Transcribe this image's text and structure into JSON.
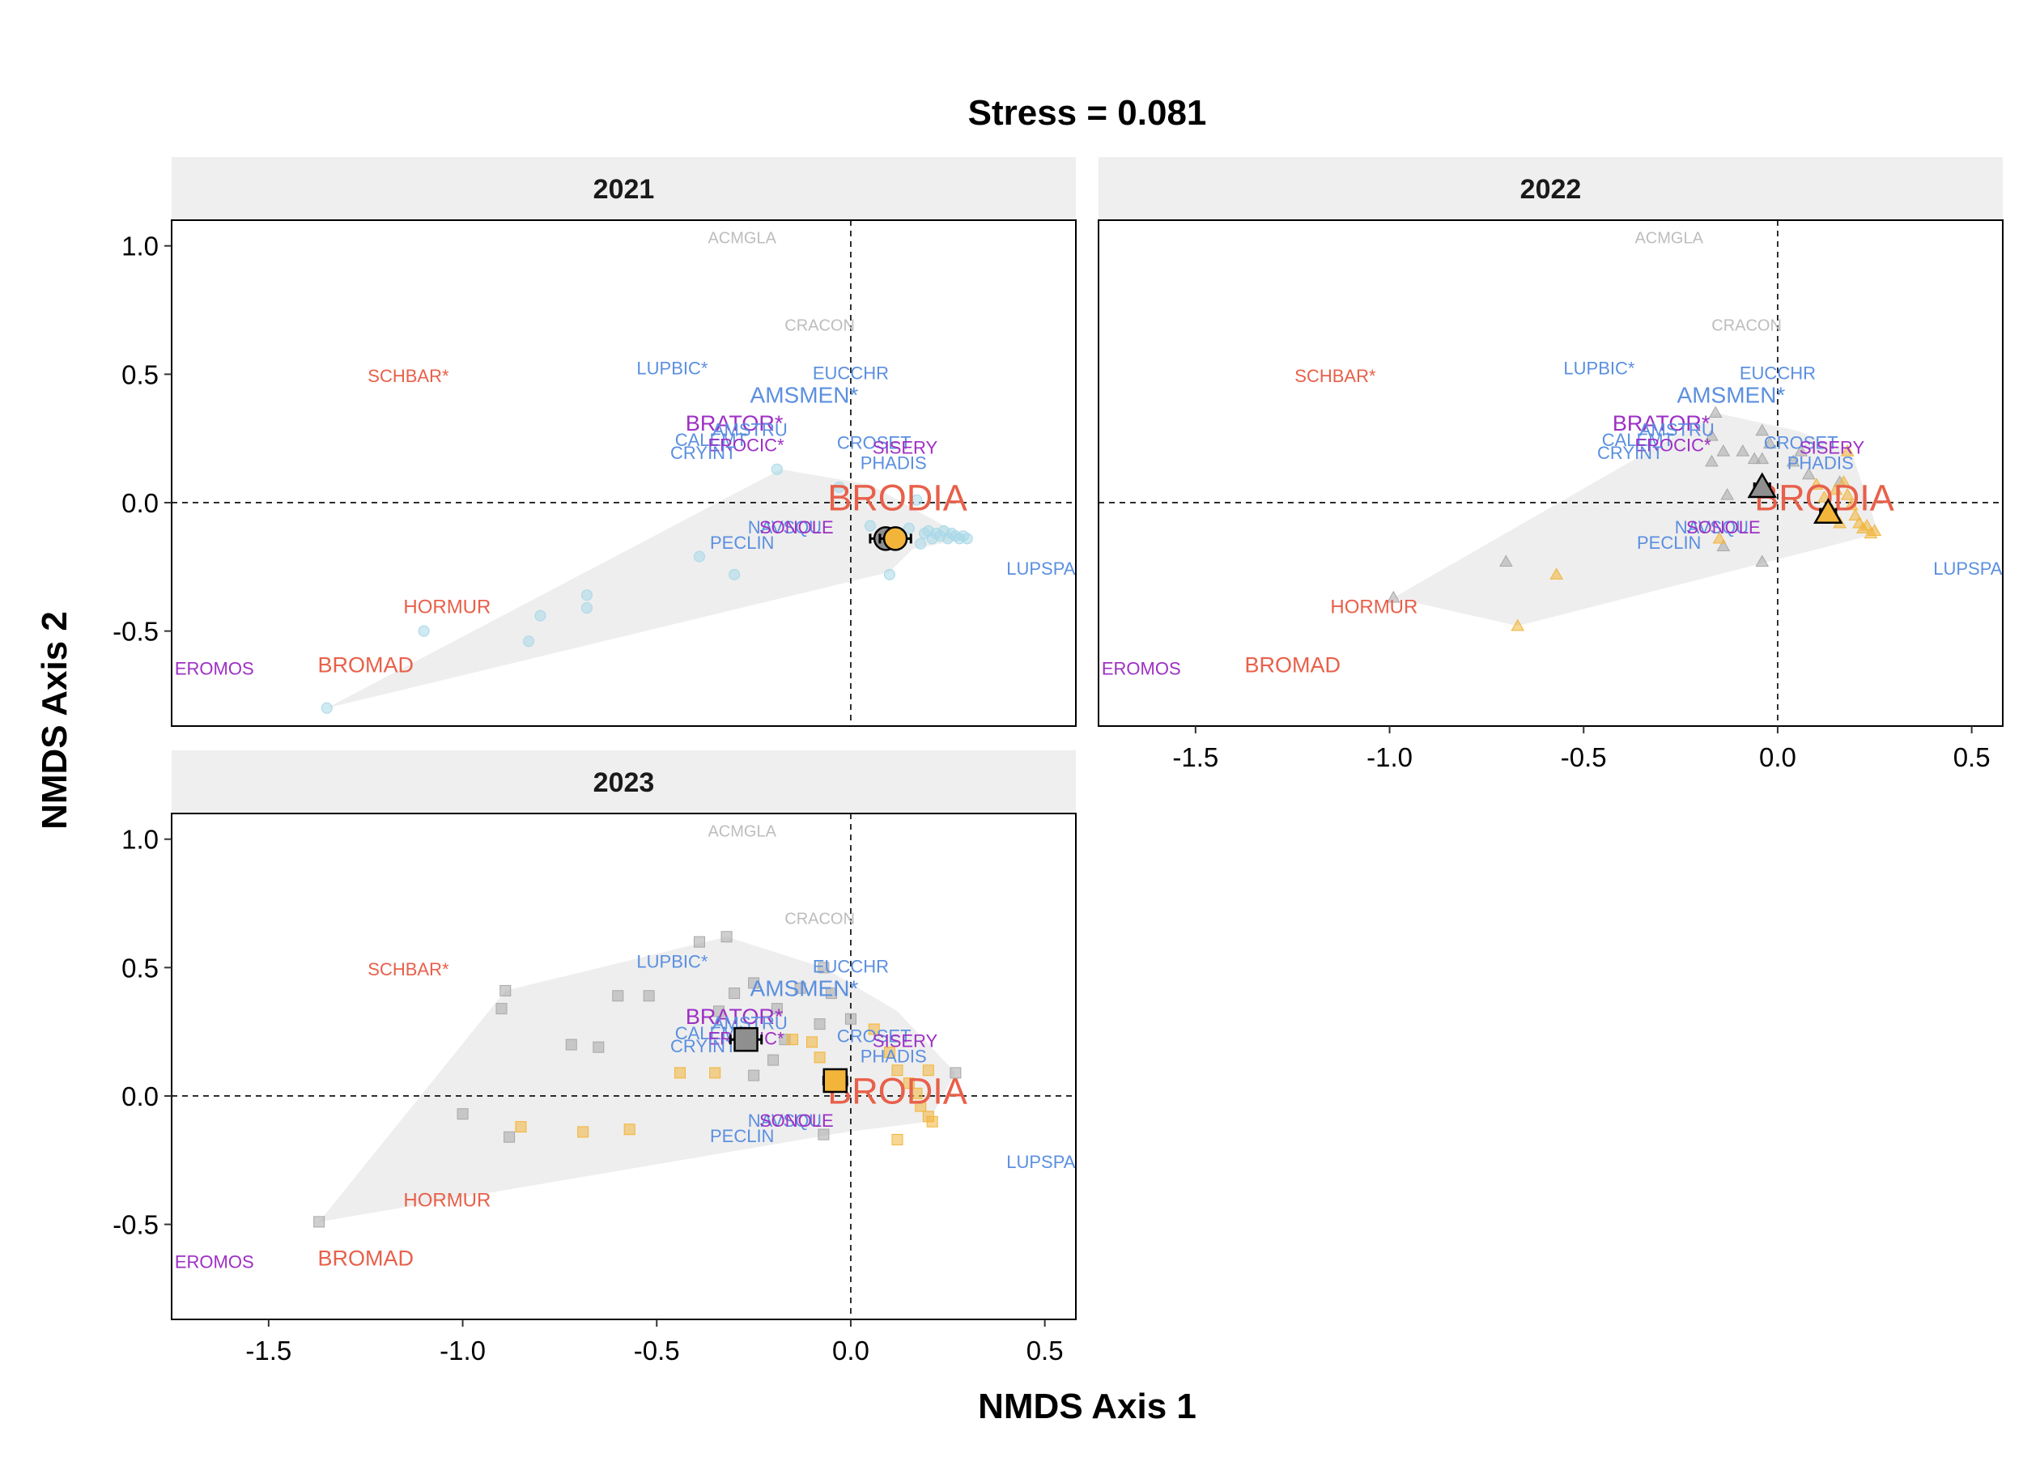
{
  "chart_data": {
    "type": "scatter",
    "title": "Stress = 0.081",
    "xlabel": "NMDS Axis 1",
    "ylabel": "NMDS Axis 2",
    "xlim": [
      -1.75,
      0.58
    ],
    "ylim": [
      -0.87,
      1.1
    ],
    "xticks": [
      -1.5,
      -1.0,
      -0.5,
      0.0,
      0.5
    ],
    "xtick_labels": [
      "-1.5",
      "-1.0",
      "-0.5",
      "0.0",
      "0.5"
    ],
    "yticks": [
      -0.5,
      0.0,
      0.5,
      1.0
    ],
    "ytick_labels": [
      "-0.5",
      "0.0",
      "0.5",
      "1.0"
    ],
    "grid": false,
    "reference_lines": {
      "x": 0,
      "y": 0,
      "style": "dashed"
    },
    "colors": {
      "orange": "#f2b53a",
      "gray": "#a8a8a8",
      "lightblue": "#a8d8e8",
      "hull": "#ebebeb",
      "red": "#e8604a",
      "blue": "#5b8fe0",
      "purple": "#9d2fc4",
      "lightgray": "#bdbdbd"
    },
    "species": [
      {
        "label": "ACMGLA",
        "x": -0.28,
        "y": 1.01,
        "color": "#bdbdbd",
        "size": 20
      },
      {
        "label": "CRACON",
        "x": -0.08,
        "y": 0.67,
        "color": "#bdbdbd",
        "size": 20
      },
      {
        "label": "SCHBAR*",
        "x": -1.14,
        "y": 0.47,
        "color": "#e8604a",
        "size": 22
      },
      {
        "label": "LUPBIC*",
        "x": -0.46,
        "y": 0.5,
        "color": "#5b8fe0",
        "size": 22
      },
      {
        "label": "EUCCHR",
        "x": 0.0,
        "y": 0.48,
        "color": "#5b8fe0",
        "size": 22
      },
      {
        "label": "AMSMEN*",
        "x": -0.12,
        "y": 0.39,
        "color": "#5b8fe0",
        "size": 28
      },
      {
        "label": "BRATOR*",
        "x": -0.3,
        "y": 0.28,
        "color": "#9d2fc4",
        "size": 27
      },
      {
        "label": "AMSTRU",
        "x": -0.26,
        "y": 0.26,
        "color": "#5b8fe0",
        "size": 22
      },
      {
        "label": "CALEMT",
        "x": -0.36,
        "y": 0.22,
        "color": "#5b8fe0",
        "size": 22
      },
      {
        "label": "EROCIC*",
        "x": -0.27,
        "y": 0.2,
        "color": "#9d2fc4",
        "size": 22
      },
      {
        "label": "CRYINT",
        "x": -0.38,
        "y": 0.17,
        "color": "#5b8fe0",
        "size": 22
      },
      {
        "label": "CROSET",
        "x": 0.06,
        "y": 0.21,
        "color": "#5b8fe0",
        "size": 22
      },
      {
        "label": "SISERY",
        "x": 0.14,
        "y": 0.19,
        "color": "#9d2fc4",
        "size": 22
      },
      {
        "label": "PHADIS",
        "x": 0.11,
        "y": 0.13,
        "color": "#5b8fe0",
        "size": 22
      },
      {
        "label": "BRODIA",
        "x": 0.12,
        "y": -0.03,
        "color": "#e8604a",
        "size": 45
      },
      {
        "label": "NAVSQU",
        "x": -0.17,
        "y": -0.12,
        "color": "#5b8fe0",
        "size": 22
      },
      {
        "label": "SONOLE",
        "x": -0.14,
        "y": -0.12,
        "color": "#9d2fc4",
        "size": 22
      },
      {
        "label": "PECLIN",
        "x": -0.28,
        "y": -0.18,
        "color": "#5b8fe0",
        "size": 22
      },
      {
        "label": "LUPSPA",
        "x": 0.49,
        "y": -0.28,
        "color": "#5b8fe0",
        "size": 22
      },
      {
        "label": "HORMUR",
        "x": -1.04,
        "y": -0.43,
        "color": "#e8604a",
        "size": 24
      },
      {
        "label": "BROMAD",
        "x": -1.25,
        "y": -0.66,
        "color": "#e8604a",
        "size": 27
      },
      {
        "label": "EROMOS",
        "x": -1.64,
        "y": -0.67,
        "color": "#9d2fc4",
        "size": 22
      }
    ],
    "panels": [
      {
        "title": "2021",
        "marker": "circle",
        "hull": [
          [
            -1.35,
            -0.8
          ],
          [
            -0.18,
            0.13
          ],
          [
            0.05,
            0.07
          ],
          [
            0.3,
            -0.14
          ],
          [
            0.16,
            -0.18
          ],
          [
            0.1,
            -0.27
          ]
        ],
        "points": [
          {
            "x": -1.35,
            "y": -0.8,
            "c": "lightblue"
          },
          {
            "x": -1.1,
            "y": -0.5,
            "c": "lightblue"
          },
          {
            "x": -0.83,
            "y": -0.54,
            "c": "lightblue"
          },
          {
            "x": -0.8,
            "y": -0.44,
            "c": "lightblue"
          },
          {
            "x": -0.68,
            "y": -0.41,
            "c": "lightblue"
          },
          {
            "x": -0.68,
            "y": -0.36,
            "c": "lightblue"
          },
          {
            "x": -0.39,
            "y": -0.21,
            "c": "lightblue"
          },
          {
            "x": -0.3,
            "y": -0.28,
            "c": "lightblue"
          },
          {
            "x": -0.19,
            "y": 0.13,
            "c": "lightblue"
          },
          {
            "x": -0.03,
            "y": 0.06,
            "c": "lightblue"
          },
          {
            "x": 0.1,
            "y": -0.28,
            "c": "lightblue"
          },
          {
            "x": 0.13,
            "y": -0.14,
            "c": "lightblue"
          },
          {
            "x": 0.15,
            "y": -0.1,
            "c": "lightblue"
          },
          {
            "x": 0.18,
            "y": -0.16,
            "c": "lightblue"
          },
          {
            "x": 0.19,
            "y": -0.12,
            "c": "lightblue"
          },
          {
            "x": 0.2,
            "y": -0.11,
            "c": "lightblue"
          },
          {
            "x": 0.21,
            "y": -0.14,
            "c": "lightblue"
          },
          {
            "x": 0.22,
            "y": -0.12,
            "c": "lightblue"
          },
          {
            "x": 0.23,
            "y": -0.13,
            "c": "lightblue"
          },
          {
            "x": 0.24,
            "y": -0.11,
            "c": "lightblue"
          },
          {
            "x": 0.25,
            "y": -0.14,
            "c": "lightblue"
          },
          {
            "x": 0.26,
            "y": -0.12,
            "c": "lightblue"
          },
          {
            "x": 0.27,
            "y": -0.13,
            "c": "lightblue"
          },
          {
            "x": 0.28,
            "y": -0.14,
            "c": "lightblue"
          },
          {
            "x": 0.29,
            "y": -0.13,
            "c": "lightblue"
          },
          {
            "x": 0.3,
            "y": -0.14,
            "c": "lightblue"
          },
          {
            "x": 0.17,
            "y": 0.01,
            "c": "lightblue"
          },
          {
            "x": 0.05,
            "y": -0.09,
            "c": "lightblue"
          }
        ],
        "centroids": [
          {
            "x": 0.09,
            "y": -0.14,
            "c": "gray",
            "err": 0.04
          },
          {
            "x": 0.115,
            "y": -0.14,
            "c": "orange",
            "err": 0.04
          }
        ]
      },
      {
        "title": "2022",
        "marker": "triangle",
        "hull": [
          [
            -0.99,
            -0.37
          ],
          [
            -0.16,
            0.35
          ],
          [
            0.05,
            0.28
          ],
          [
            0.19,
            0.2
          ],
          [
            0.26,
            -0.12
          ],
          [
            -0.67,
            -0.48
          ]
        ],
        "points": [
          {
            "x": -0.99,
            "y": -0.37,
            "c": "gray"
          },
          {
            "x": -0.7,
            "y": -0.23,
            "c": "gray"
          },
          {
            "x": -0.16,
            "y": 0.35,
            "c": "gray"
          },
          {
            "x": -0.17,
            "y": 0.26,
            "c": "gray"
          },
          {
            "x": -0.14,
            "y": 0.2,
            "c": "gray"
          },
          {
            "x": -0.17,
            "y": 0.16,
            "c": "gray"
          },
          {
            "x": -0.09,
            "y": 0.2,
            "c": "gray"
          },
          {
            "x": -0.06,
            "y": 0.17,
            "c": "gray"
          },
          {
            "x": -0.04,
            "y": 0.17,
            "c": "gray"
          },
          {
            "x": -0.04,
            "y": 0.28,
            "c": "gray"
          },
          {
            "x": -0.02,
            "y": 0.23,
            "c": "gray"
          },
          {
            "x": 0.04,
            "y": 0.16,
            "c": "gray"
          },
          {
            "x": 0.06,
            "y": 0.2,
            "c": "gray"
          },
          {
            "x": 0.08,
            "y": 0.11,
            "c": "gray"
          },
          {
            "x": -0.13,
            "y": 0.03,
            "c": "gray"
          },
          {
            "x": -0.04,
            "y": -0.23,
            "c": "gray"
          },
          {
            "x": -0.14,
            "y": -0.17,
            "c": "gray"
          },
          {
            "x": 0.16,
            "y": 0.08,
            "c": "gray"
          },
          {
            "x": -0.67,
            "y": -0.48,
            "c": "orange"
          },
          {
            "x": -0.57,
            "y": -0.28,
            "c": "orange"
          },
          {
            "x": -0.15,
            "y": -0.14,
            "c": "orange"
          },
          {
            "x": 0.1,
            "y": 0.07,
            "c": "orange"
          },
          {
            "x": 0.12,
            "y": 0.02,
            "c": "orange"
          },
          {
            "x": 0.14,
            "y": -0.03,
            "c": "orange"
          },
          {
            "x": 0.15,
            "y": 0.05,
            "c": "orange"
          },
          {
            "x": 0.17,
            "y": 0.08,
            "c": "orange"
          },
          {
            "x": 0.18,
            "y": 0.03,
            "c": "orange"
          },
          {
            "x": 0.19,
            "y": -0.01,
            "c": "orange"
          },
          {
            "x": 0.2,
            "y": -0.05,
            "c": "orange"
          },
          {
            "x": 0.21,
            "y": -0.08,
            "c": "orange"
          },
          {
            "x": 0.22,
            "y": -0.1,
            "c": "orange"
          },
          {
            "x": 0.23,
            "y": -0.09,
            "c": "orange"
          },
          {
            "x": 0.24,
            "y": -0.12,
            "c": "orange"
          },
          {
            "x": 0.25,
            "y": -0.11,
            "c": "orange"
          },
          {
            "x": 0.18,
            "y": 0.2,
            "c": "orange"
          },
          {
            "x": 0.16,
            "y": -0.08,
            "c": "orange"
          }
        ],
        "centroids": [
          {
            "x": -0.04,
            "y": 0.06,
            "c": "gray",
            "err": 0.02
          },
          {
            "x": 0.13,
            "y": -0.04,
            "c": "orange",
            "err": 0.02
          }
        ]
      },
      {
        "title": "2023",
        "marker": "square",
        "hull": [
          [
            -1.37,
            -0.49
          ],
          [
            -0.89,
            0.41
          ],
          [
            -0.32,
            0.62
          ],
          [
            -0.07,
            0.5
          ],
          [
            0.12,
            0.33
          ],
          [
            0.27,
            0.09
          ],
          [
            0.2,
            -0.1
          ],
          [
            -0.01,
            -0.14
          ]
        ],
        "points": [
          {
            "x": -1.37,
            "y": -0.49,
            "c": "gray"
          },
          {
            "x": -1.0,
            "y": -0.07,
            "c": "gray"
          },
          {
            "x": -0.89,
            "y": 0.41,
            "c": "gray"
          },
          {
            "x": -0.9,
            "y": 0.34,
            "c": "gray"
          },
          {
            "x": -0.88,
            "y": -0.16,
            "c": "gray"
          },
          {
            "x": -0.72,
            "y": 0.2,
            "c": "gray"
          },
          {
            "x": -0.65,
            "y": 0.19,
            "c": "gray"
          },
          {
            "x": -0.6,
            "y": 0.39,
            "c": "gray"
          },
          {
            "x": -0.52,
            "y": 0.39,
            "c": "gray"
          },
          {
            "x": -0.39,
            "y": 0.6,
            "c": "gray"
          },
          {
            "x": -0.32,
            "y": 0.62,
            "c": "gray"
          },
          {
            "x": -0.34,
            "y": 0.33,
            "c": "gray"
          },
          {
            "x": -0.3,
            "y": 0.4,
            "c": "gray"
          },
          {
            "x": -0.25,
            "y": 0.44,
            "c": "gray"
          },
          {
            "x": -0.19,
            "y": 0.34,
            "c": "gray"
          },
          {
            "x": -0.13,
            "y": 0.42,
            "c": "gray"
          },
          {
            "x": -0.07,
            "y": 0.5,
            "c": "gray"
          },
          {
            "x": -0.05,
            "y": 0.4,
            "c": "gray"
          },
          {
            "x": -0.08,
            "y": 0.28,
            "c": "gray"
          },
          {
            "x": -0.2,
            "y": 0.14,
            "c": "gray"
          },
          {
            "x": -0.25,
            "y": 0.08,
            "c": "gray"
          },
          {
            "x": -0.17,
            "y": 0.22,
            "c": "gray"
          },
          {
            "x": -0.07,
            "y": -0.15,
            "c": "gray"
          },
          {
            "x": 0.27,
            "y": 0.09,
            "c": "gray"
          },
          {
            "x": 0.0,
            "y": 0.3,
            "c": "gray"
          },
          {
            "x": -0.85,
            "y": -0.12,
            "c": "orange"
          },
          {
            "x": -0.69,
            "y": -0.14,
            "c": "orange"
          },
          {
            "x": -0.57,
            "y": -0.13,
            "c": "orange"
          },
          {
            "x": -0.44,
            "y": 0.09,
            "c": "orange"
          },
          {
            "x": -0.35,
            "y": 0.09,
            "c": "orange"
          },
          {
            "x": -0.1,
            "y": 0.21,
            "c": "orange"
          },
          {
            "x": -0.08,
            "y": 0.15,
            "c": "orange"
          },
          {
            "x": -0.15,
            "y": 0.22,
            "c": "orange"
          },
          {
            "x": 0.06,
            "y": 0.26,
            "c": "orange"
          },
          {
            "x": 0.1,
            "y": 0.17,
            "c": "orange"
          },
          {
            "x": 0.12,
            "y": 0.1,
            "c": "orange"
          },
          {
            "x": 0.15,
            "y": 0.05,
            "c": "orange"
          },
          {
            "x": 0.17,
            "y": 0.01,
            "c": "orange"
          },
          {
            "x": 0.18,
            "y": -0.04,
            "c": "orange"
          },
          {
            "x": 0.2,
            "y": -0.08,
            "c": "orange"
          },
          {
            "x": 0.21,
            "y": -0.1,
            "c": "orange"
          },
          {
            "x": 0.12,
            "y": -0.17,
            "c": "orange"
          },
          {
            "x": 0.2,
            "y": 0.1,
            "c": "orange"
          }
        ],
        "centroids": [
          {
            "x": -0.27,
            "y": 0.22,
            "c": "gray",
            "err": 0.04
          },
          {
            "x": -0.04,
            "y": 0.06,
            "c": "orange",
            "err": 0.03
          }
        ]
      }
    ]
  }
}
